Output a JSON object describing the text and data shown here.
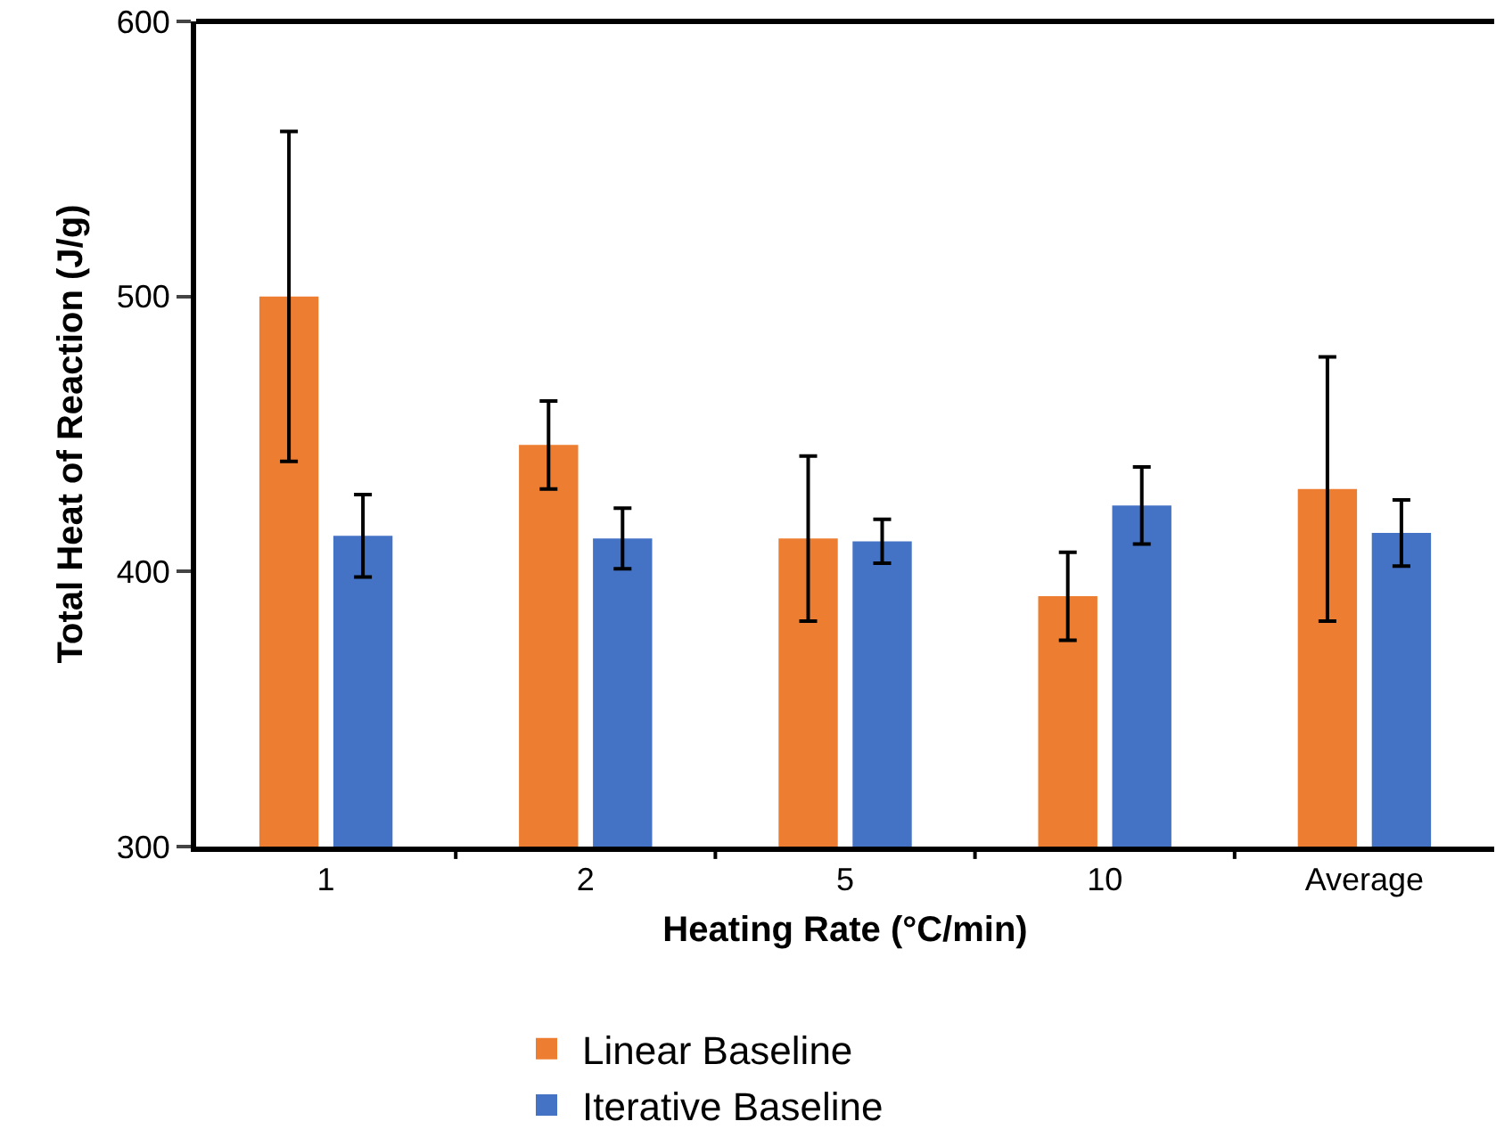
{
  "chart_data": {
    "type": "bar",
    "xlabel": "Heating Rate (°C/min)",
    "ylabel": "Total Heat of Reaction (J/g)",
    "categories": [
      "1",
      "2",
      "5",
      "10",
      "Average"
    ],
    "series": [
      {
        "name": "Linear Baseline",
        "color": "#ed7d31",
        "values": [
          500,
          446,
          412,
          391,
          430
        ],
        "errors": [
          60,
          16,
          30,
          16,
          48
        ]
      },
      {
        "name": "Iterative Baseline",
        "color": "#4472c4",
        "values": [
          413,
          412,
          411,
          424,
          414
        ],
        "errors": [
          15,
          11,
          8,
          14,
          12
        ]
      }
    ],
    "ylim": [
      300,
      600
    ],
    "yticks": [
      300,
      400,
      500,
      600
    ],
    "grid": false,
    "legend": "bottom"
  }
}
